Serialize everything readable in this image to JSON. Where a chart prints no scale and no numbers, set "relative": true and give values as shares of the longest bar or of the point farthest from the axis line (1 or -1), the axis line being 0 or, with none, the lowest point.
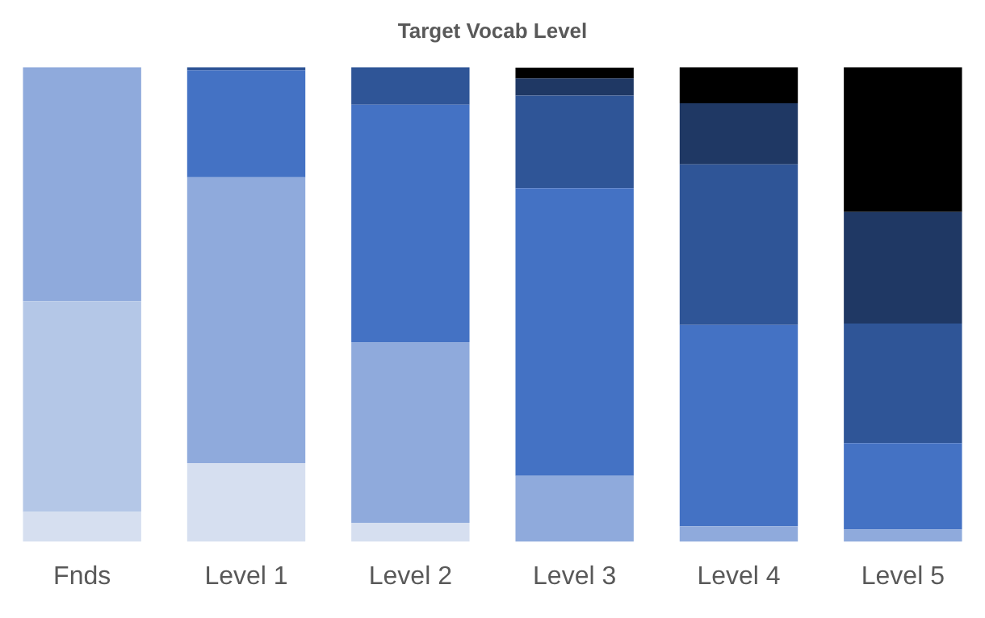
{
  "chart_data": {
    "type": "bar",
    "title": "Target Vocab Level",
    "stacked": true,
    "relative": true,
    "legend": false,
    "grid": false,
    "categories": [
      "Fnds",
      "Level 1",
      "Level 2",
      "Level 3",
      "Level 4",
      "Level 5"
    ],
    "series": [
      {
        "color": "#d6dff0",
        "values": [
          0.063,
          0.166,
          0.04,
          null,
          null,
          null
        ]
      },
      {
        "color": "#b4c7e7",
        "values": [
          0.444,
          null,
          null,
          null,
          null,
          null
        ]
      },
      {
        "color": "#8faadc",
        "values": [
          0.493,
          0.602,
          0.381,
          0.139,
          0.033,
          0.026
        ]
      },
      {
        "color": "#4472c4",
        "values": [
          null,
          0.225,
          0.5,
          0.606,
          0.424,
          0.182
        ]
      },
      {
        "color": "#2f5597",
        "values": [
          null,
          0.007,
          0.079,
          0.195,
          0.338,
          0.252
        ]
      },
      {
        "color": "#1f3864",
        "values": [
          null,
          null,
          null,
          0.036,
          0.129,
          0.235
        ]
      },
      {
        "color": "#000000",
        "values": [
          null,
          null,
          null,
          0.023,
          0.076,
          0.305
        ]
      }
    ]
  }
}
